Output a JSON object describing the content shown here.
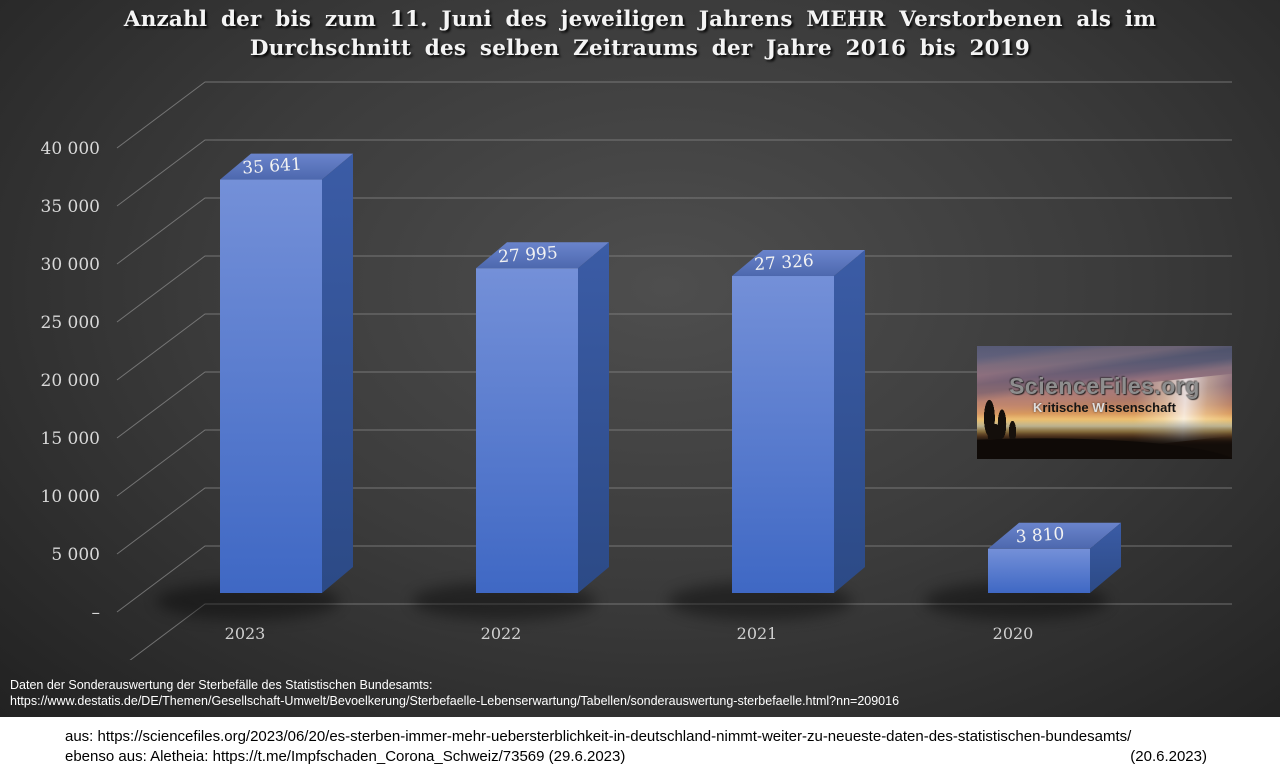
{
  "title": {
    "line1": "Anzahl der bis zum 11. Juni des jeweiligen Jahrens MEHR Verstorbenen als im",
    "line2": "Durchschnitt des selben Zeitraums der Jahre 2016 bis 2019"
  },
  "chart_data": {
    "type": "bar",
    "style_3d": true,
    "title": "Anzahl der bis zum 11. Juni des jeweiligen Jahrens MEHR Verstorbenen als im Durchschnitt des selben Zeitraums der Jahre 2016 bis 2019",
    "categories": [
      "2023",
      "2022",
      "2021",
      "2020"
    ],
    "values": [
      35641,
      27995,
      27326,
      3810
    ],
    "value_labels": [
      "35 641",
      "27 995",
      "27 326",
      "3 810"
    ],
    "xlabel": "",
    "ylabel": "",
    "ylim": [
      0,
      45000
    ],
    "y_tick_step": 5000,
    "y_ticks": [
      "–",
      "5 000",
      "10 000",
      "15 000",
      "20 000",
      "25 000",
      "30 000",
      "35 000",
      "40 000"
    ],
    "grid": true,
    "legend": null,
    "colors": {
      "bar_front": [
        "#7490D8",
        "#3F68C4"
      ],
      "bar_top": [
        "#6A84CC",
        "#4D68AE"
      ],
      "bar_side": [
        "#3B5CA6",
        "#2C4A86"
      ],
      "gridline": "#8C8C8C",
      "axis_text": "#D8D8D8",
      "category_text": "#CFCFCF",
      "data_label": "#F2F2F2",
      "title_text": "#F4F4F4"
    }
  },
  "logo": {
    "brand": "ScienceFiles.org",
    "tagline_k": "K",
    "tagline_r1": "ritische ",
    "tagline_w": "W",
    "tagline_r2": "issenschaft"
  },
  "source_dark": {
    "line1": "Daten der Sonderauswertung der Sterbefälle des Statistischen Bundesamts:",
    "line2": "https://www.destatis.de/DE/Themen/Gesellschaft-Umwelt/Bevoelkerung/Sterbefaelle-Lebenserwartung/Tabellen/sonderauswertung-sterbefaelle.html?nn=209016"
  },
  "source_white": {
    "line1": "aus: https://sciencefiles.org/2023/06/20/es-sterben-immer-mehr-uebersterblichkeit-in-deutschland-nimmt-weiter-zu-neueste-daten-des-statistischen-bundesamts/",
    "line2": "ebenso aus: Aletheia: https://t.me/Impfschaden_Corona_Schweiz/73569 (29.6.2023)",
    "date_right": "(20.6.2023)"
  }
}
